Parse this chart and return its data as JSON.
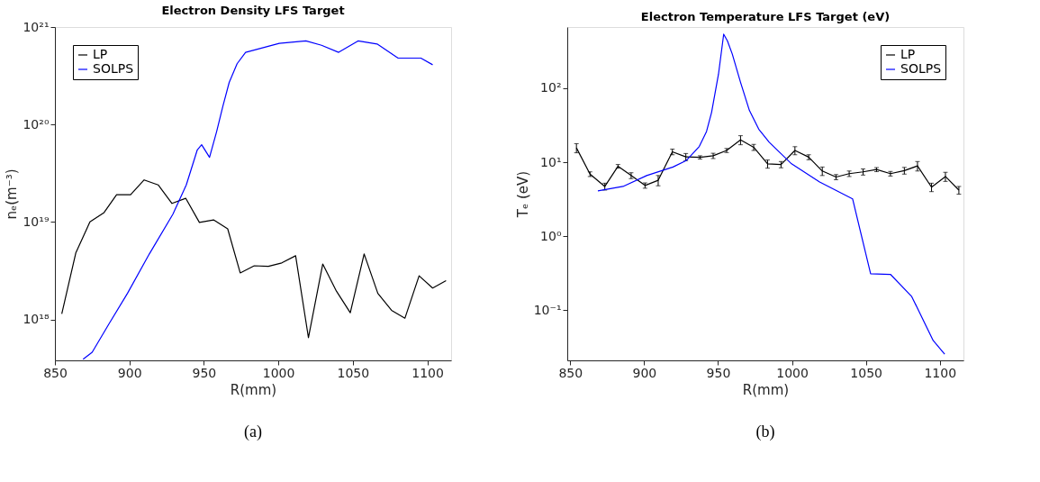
{
  "chart_data": [
    {
      "type": "line",
      "title": "Electron Density LFS Target",
      "xlabel": "R(mm)",
      "ylabel": "nₑ(m⁻³)",
      "log": "y",
      "grid": false,
      "legend": "top left",
      "marker": "none",
      "line_style": "solid",
      "xlim": [
        850,
        1116
      ],
      "xticks": [
        850,
        900,
        950,
        1000,
        1050,
        1100
      ],
      "ylim": [
        3.8e+17,
        1e+21
      ],
      "yticks": [
        {
          "value": 1e+18,
          "label": "10¹⁸"
        },
        {
          "value": 1e+19,
          "label": "10¹⁹"
        },
        {
          "value": 1e+20,
          "label": "10²⁰"
        },
        {
          "value": 1e+21,
          "label": "10²¹"
        }
      ],
      "annotations": [
        "(a)"
      ],
      "series": [
        {
          "name": "LP",
          "color": "#000000",
          "x": [
            854.6,
            864,
            873.5,
            883,
            891.4,
            900.8,
            909.9,
            919.3,
            928.6,
            937.8,
            947,
            956.5,
            966,
            974.4,
            983.8,
            993.3,
            1002.3,
            1011.6,
            1020.2,
            1029.8,
            1039,
            1048.3,
            1057.6,
            1066.8,
            1076,
            1085,
            1094.5,
            1103.6,
            1112.6
          ],
          "values": [
            1.14e+18,
            4.8e+18,
            1e+19,
            1.25e+19,
            1.9e+19,
            1.9e+19,
            2.7e+19,
            2.4e+19,
            1.55e+19,
            1.75e+19,
            9.9e+18,
            1.05e+19,
            8.5e+18,
            3e+18,
            3.55e+18,
            3.5e+18,
            3.8e+18,
            4.5e+18,
            6.5e+17,
            3.7e+18,
            1.95e+18,
            1.17e+18,
            4.7e+18,
            1.85e+18,
            1.24e+18,
            1.03e+18,
            2.8e+18,
            2.1e+18,
            2.5e+18
          ]
        },
        {
          "name": "SOLPS",
          "color": "#0000ff",
          "x": [
            868.9,
            875,
            886.1,
            898.7,
            913.4,
            929.2,
            938.2,
            945.6,
            948.5,
            953.8,
            958.6,
            962.8,
            967,
            972.3,
            978,
            1000.6,
            1018.5,
            1029,
            1040.5,
            1053.5,
            1066.3,
            1080.4,
            1095.7,
            1103.6
          ],
          "values": [
            3.9e+17,
            4.6e+17,
            8.9e+17,
            1.85e+18,
            4.7e+18,
            1.2e+19,
            2.4e+19,
            5.5e+19,
            6.2e+19,
            4.6e+19,
            8.5e+19,
            1.55e+20,
            2.7e+20,
            4.2e+20,
            5.5e+20,
            6.8e+20,
            7.2e+20,
            6.5e+20,
            5.5e+20,
            7.2e+20,
            6.7e+20,
            4.8e+20,
            4.8e+20,
            4.1e+20
          ]
        }
      ]
    },
    {
      "type": "line",
      "title": "Electron Temperature LFS Target (eV)",
      "xlabel": "R(mm)",
      "ylabel": "Tₑ (eV)",
      "log": "y",
      "grid": false,
      "legend": "top right",
      "marker": "none",
      "line_style": "solid",
      "xlim": [
        848,
        1116
      ],
      "xticks": [
        850,
        900,
        950,
        1000,
        1050,
        1100
      ],
      "ylim": [
        0.021,
        670
      ],
      "yticks": [
        {
          "value": 0.1,
          "label": "10⁻¹"
        },
        {
          "value": 1,
          "label": "10⁰"
        },
        {
          "value": 10,
          "label": "10¹"
        },
        {
          "value": 100,
          "label": "10²"
        }
      ],
      "annotations": [
        "(b)"
      ],
      "series": [
        {
          "name": "LP",
          "color": "#000000",
          "x": [
            854.2,
            863.4,
            873.4,
            882.3,
            891.2,
            900.6,
            909.5,
            919.1,
            928.2,
            937.8,
            946.7,
            955.8,
            965.2,
            974.1,
            983.5,
            992.6,
            1002,
            1011.3,
            1020.5,
            1029.8,
            1038.7,
            1048.1,
            1057.2,
            1066.6,
            1076,
            1084.9,
            1094.4,
            1103.8,
            1112.9
          ],
          "values": [
            15.6,
            6.9,
            4.7,
            8.8,
            6.6,
            4.85,
            5.7,
            13.8,
            11.8,
            11.6,
            12.2,
            14.4,
            20,
            15.9,
            9.5,
            9.3,
            14.4,
            11.7,
            7.6,
            6.3,
            7.0,
            7.4,
            7.95,
            7.0,
            7.7,
            8.9,
            4.6,
            6.4,
            4.2
          ],
          "errors": [
            2.2,
            0.5,
            0.5,
            0.5,
            0.6,
            0.4,
            0.9,
            1.2,
            1.3,
            0.6,
            1.0,
            0.9,
            2.8,
            1.5,
            1.2,
            0.9,
            1.8,
            0.9,
            1.0,
            0.5,
            0.6,
            0.7,
            0.5,
            0.5,
            0.8,
            1.3,
            0.6,
            0.9,
            0.5
          ]
        },
        {
          "name": "SOLPS",
          "color": "#0000ff",
          "x": [
            868.7,
            885.7,
            901.7,
            919.5,
            928.4,
            937.3,
            942.2,
            945.6,
            950.3,
            953.8,
            956.3,
            959.6,
            965.2,
            971.2,
            977.5,
            984.6,
            999.7,
            1018.7,
            1041,
            1053.2,
            1066.6,
            1081,
            1095.5,
            1103.3
          ],
          "values": [
            4.1,
            4.7,
            6.6,
            8.6,
            10.5,
            16.3,
            26,
            47,
            155,
            536,
            436,
            290,
            120,
            50,
            28,
            18.6,
            9.5,
            5.4,
            3.2,
            0.31,
            0.305,
            0.153,
            0.039,
            0.0255
          ]
        }
      ]
    }
  ]
}
